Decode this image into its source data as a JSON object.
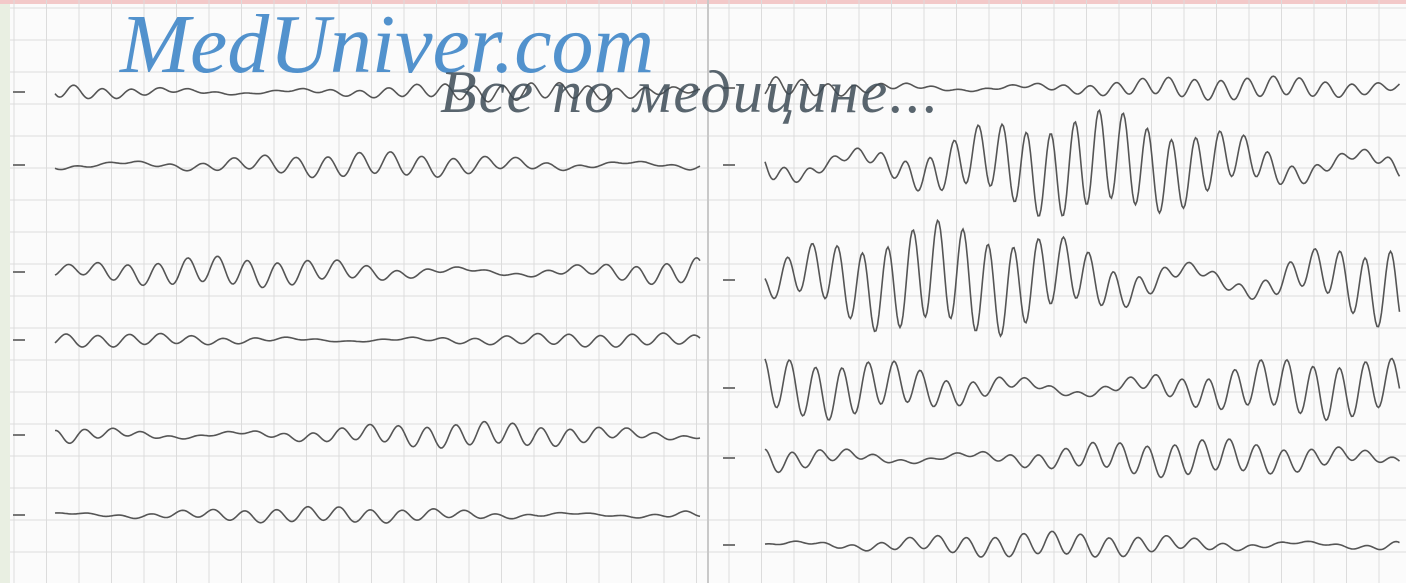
{
  "watermark": {
    "site": "MedUniver.com",
    "tagline": "Все по медицине..."
  }
}
